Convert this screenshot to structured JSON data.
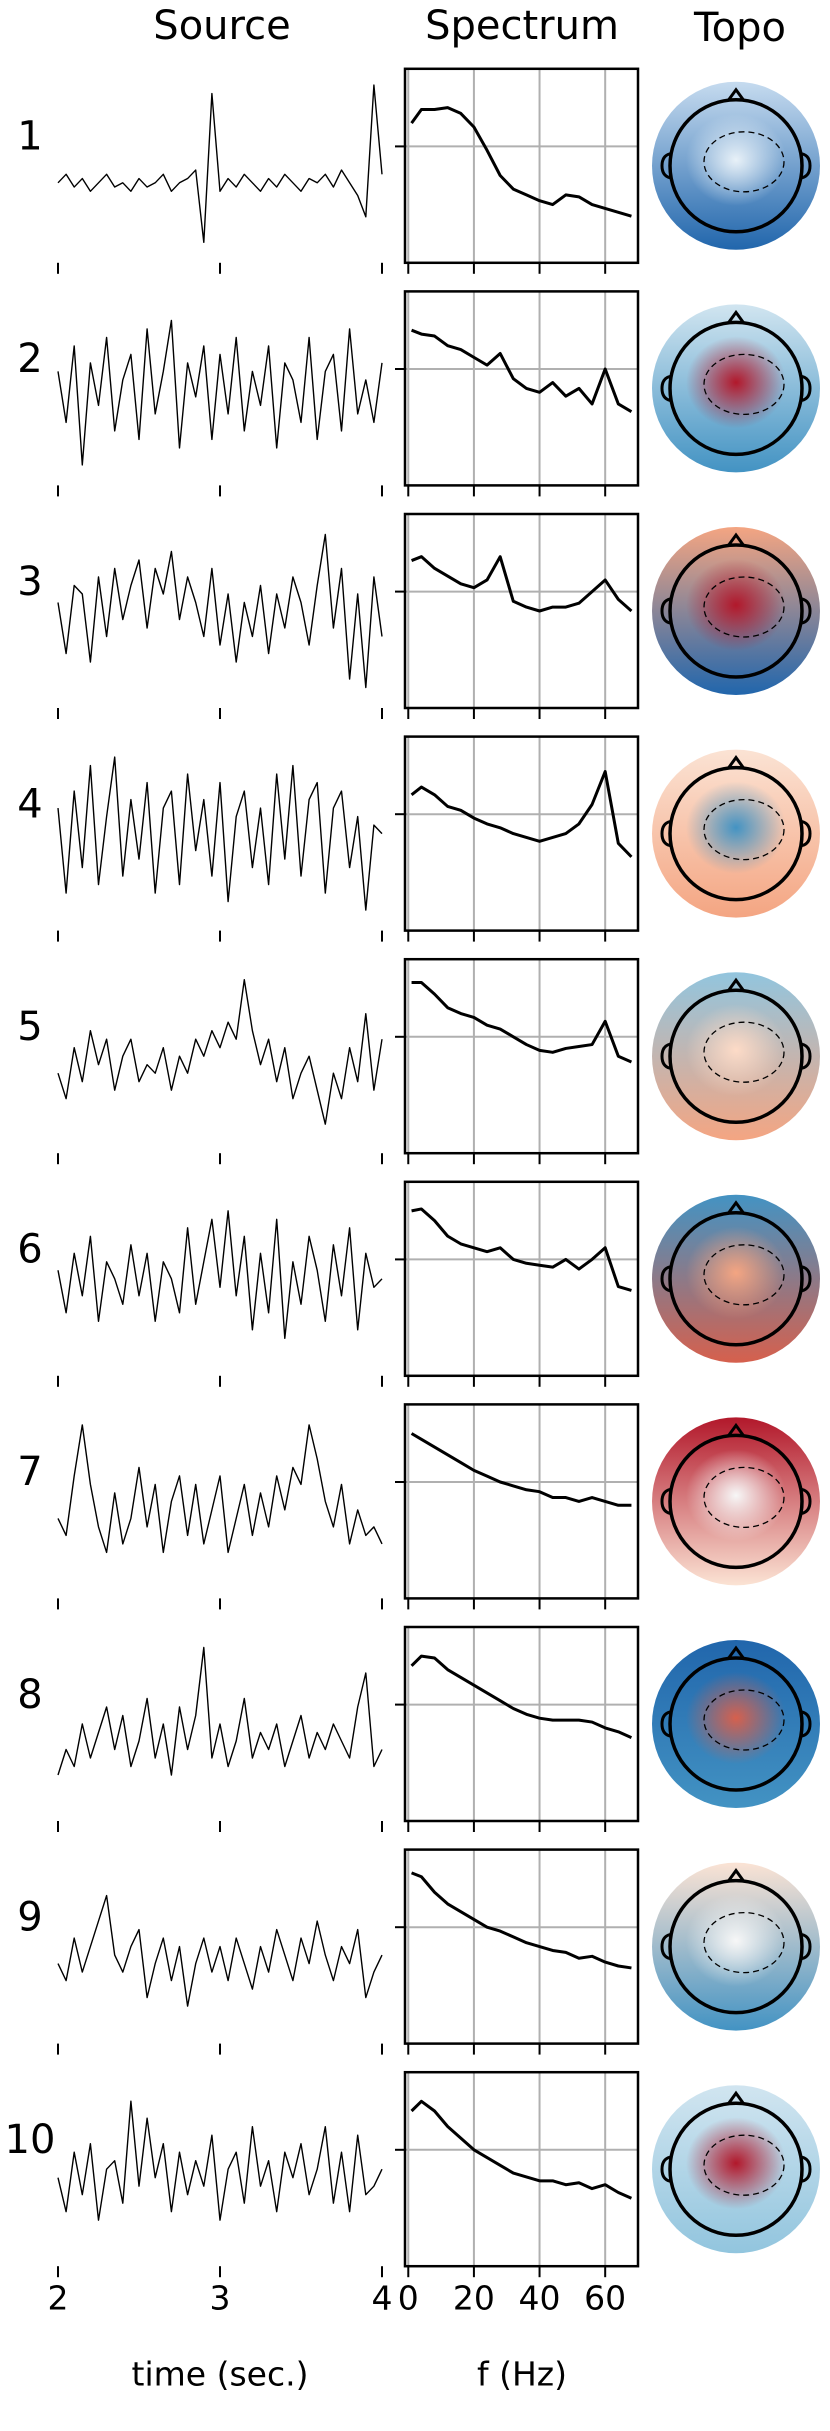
{
  "chart_data": [
    {
      "type": "line",
      "title": "Source",
      "xlabel": "time (sec.)",
      "color": "#000000",
      "x": [
        2,
        2.05,
        2.1,
        2.15,
        2.2,
        2.25,
        2.3,
        2.35,
        2.4,
        2.45,
        2.5,
        2.55,
        2.6,
        2.65,
        2.7,
        2.75,
        2.8,
        2.85,
        2.9,
        2.95,
        3,
        3.05,
        3.1,
        3.15,
        3.2,
        3.25,
        3.3,
        3.35,
        3.4,
        3.45,
        3.5,
        3.55,
        3.6,
        3.65,
        3.7,
        3.75,
        3.8,
        3.85,
        3.9,
        3.95,
        4
      ],
      "xlim": [
        2,
        4
      ],
      "xticks": [
        2,
        3,
        4
      ],
      "ylim": [
        -1,
        1
      ],
      "series": [
        {
          "name": "1",
          "values": [
            -0.2,
            -0.1,
            -0.25,
            -0.15,
            -0.3,
            -0.2,
            -0.1,
            -0.25,
            -0.2,
            -0.3,
            -0.15,
            -0.25,
            -0.2,
            -0.1,
            -0.3,
            -0.2,
            -0.15,
            -0.05,
            -0.9,
            0.85,
            -0.3,
            -0.15,
            -0.25,
            -0.1,
            -0.2,
            -0.3,
            -0.15,
            -0.25,
            -0.1,
            -0.2,
            -0.3,
            -0.15,
            -0.2,
            -0.1,
            -0.25,
            -0.05,
            -0.2,
            -0.35,
            -0.6,
            0.95,
            -0.1
          ]
        },
        {
          "name": "2",
          "values": [
            0.2,
            -0.4,
            0.5,
            -0.9,
            0.3,
            -0.2,
            0.6,
            -0.5,
            0.1,
            0.4,
            -0.6,
            0.7,
            -0.3,
            0.2,
            0.8,
            -0.7,
            0.3,
            -0.1,
            0.5,
            -0.6,
            0.4,
            -0.3,
            0.6,
            -0.5,
            0.2,
            -0.2,
            0.5,
            -0.7,
            0.3,
            0.1,
            -0.4,
            0.6,
            -0.6,
            0.2,
            0.4,
            -0.5,
            0.7,
            -0.3,
            0.1,
            -0.4,
            0.3
          ]
        },
        {
          "name": "3",
          "values": [
            0.1,
            -0.5,
            0.3,
            0.2,
            -0.6,
            0.4,
            -0.3,
            0.5,
            -0.1,
            0.3,
            0.6,
            -0.2,
            0.5,
            0.2,
            0.7,
            -0.1,
            0.4,
            0.1,
            -0.3,
            0.5,
            -0.4,
            0.2,
            -0.6,
            0.1,
            -0.3,
            0.3,
            -0.5,
            0.2,
            -0.2,
            0.4,
            0.1,
            -0.4,
            0.3,
            0.9,
            -0.2,
            0.5,
            -0.8,
            0.2,
            -0.9,
            0.4,
            -0.3
          ]
        },
        {
          "name": "4",
          "values": [
            0.3,
            -0.7,
            0.5,
            -0.4,
            0.8,
            -0.6,
            0.2,
            0.9,
            -0.5,
            0.4,
            -0.3,
            0.6,
            -0.7,
            0.3,
            0.5,
            -0.6,
            0.7,
            -0.2,
            0.4,
            -0.5,
            0.6,
            -0.8,
            0.2,
            0.5,
            -0.4,
            0.3,
            -0.6,
            0.7,
            -0.3,
            0.8,
            -0.5,
            0.4,
            0.6,
            -0.7,
            0.3,
            0.5,
            -0.4,
            0.2,
            -0.9,
            0.1,
            0
          ]
        },
        {
          "name": "5",
          "values": [
            -0.2,
            -0.5,
            0.1,
            -0.3,
            0.3,
            -0.1,
            0.2,
            -0.4,
            0,
            0.2,
            -0.3,
            -0.1,
            -0.2,
            0.1,
            -0.4,
            0,
            -0.2,
            0.2,
            0,
            0.3,
            0.1,
            0.4,
            0.2,
            0.9,
            0.3,
            -0.1,
            0.2,
            -0.3,
            0.1,
            -0.5,
            -0.2,
            0,
            -0.4,
            -0.8,
            -0.2,
            -0.5,
            0.1,
            -0.3,
            0.5,
            -0.4,
            0.2
          ]
        },
        {
          "name": "6",
          "values": [
            0.1,
            -0.4,
            0.3,
            -0.2,
            0.5,
            -0.5,
            0.2,
            0,
            -0.3,
            0.4,
            -0.2,
            0.3,
            -0.5,
            0.2,
            0,
            -0.4,
            0.6,
            -0.3,
            0.2,
            0.7,
            -0.1,
            0.8,
            -0.2,
            0.5,
            -0.6,
            0.3,
            -0.4,
            0.7,
            -0.7,
            0.2,
            -0.3,
            0.5,
            0.1,
            -0.5,
            0.4,
            -0.2,
            0.6,
            -0.6,
            0.3,
            -0.1,
            0
          ]
        },
        {
          "name": "7",
          "values": [
            -0.2,
            -0.4,
            0.3,
            0.9,
            0.2,
            -0.3,
            -0.6,
            0.1,
            -0.5,
            -0.2,
            0.4,
            -0.3,
            0.2,
            -0.6,
            0,
            0.3,
            -0.4,
            0.2,
            -0.5,
            -0.1,
            0.3,
            -0.6,
            -0.2,
            0.2,
            -0.4,
            0.1,
            -0.3,
            0.3,
            -0.1,
            0.4,
            0.2,
            0.9,
            0.5,
            0,
            -0.3,
            0.2,
            -0.5,
            -0.1,
            -0.4,
            -0.3,
            -0.5
          ]
        },
        {
          "name": "8",
          "values": [
            -0.6,
            -0.3,
            -0.5,
            0,
            -0.4,
            -0.1,
            0.2,
            -0.3,
            0.1,
            -0.5,
            -0.2,
            0.3,
            -0.4,
            0,
            -0.6,
            0.2,
            -0.3,
            0.1,
            0.9,
            -0.4,
            0,
            -0.5,
            -0.2,
            0.3,
            -0.4,
            -0.1,
            -0.3,
            0,
            -0.5,
            -0.2,
            0.1,
            -0.4,
            -0.1,
            -0.3,
            0,
            -0.2,
            -0.4,
            0.2,
            0.6,
            -0.5,
            -0.3
          ]
        },
        {
          "name": "9",
          "values": [
            -0.2,
            -0.4,
            0.1,
            -0.3,
            0,
            0.3,
            0.6,
            -0.1,
            -0.3,
            0,
            0.2,
            -0.6,
            -0.2,
            0.1,
            -0.4,
            0,
            -0.7,
            -0.2,
            0.1,
            -0.3,
            0,
            -0.4,
            0.1,
            -0.2,
            -0.5,
            0,
            -0.3,
            0.2,
            -0.1,
            -0.4,
            0.1,
            -0.2,
            0.3,
            -0.1,
            -0.4,
            0,
            -0.2,
            0.2,
            -0.6,
            -0.3,
            -0.1
          ]
        },
        {
          "name": "10",
          "values": [
            -0.1,
            -0.5,
            0.2,
            -0.3,
            0.3,
            -0.6,
            0,
            0.1,
            -0.4,
            0.8,
            -0.2,
            0.6,
            -0.1,
            0.3,
            -0.5,
            0.2,
            -0.3,
            0.1,
            -0.2,
            0.4,
            -0.6,
            0,
            0.2,
            -0.4,
            0.5,
            -0.2,
            0.1,
            -0.5,
            0.2,
            -0.1,
            0.3,
            -0.3,
            0,
            0.5,
            -0.4,
            0.2,
            -0.5,
            0.4,
            -0.3,
            -0.2,
            0
          ]
        }
      ]
    },
    {
      "type": "line",
      "title": "Spectrum",
      "xlabel": "f (Hz)",
      "color": "#000000",
      "grid": true,
      "x": [
        1,
        4,
        8,
        12,
        16,
        20,
        24,
        28,
        32,
        36,
        40,
        44,
        48,
        52,
        56,
        60,
        64,
        68
      ],
      "xlim": [
        -1,
        70
      ],
      "xticks": [
        0,
        20,
        40,
        60
      ],
      "ylim": [
        0,
        1
      ],
      "yticks": [
        0.6
      ],
      "series": [
        {
          "values": [
            0.72,
            0.79,
            0.79,
            0.8,
            0.77,
            0.7,
            0.58,
            0.45,
            0.38,
            0.35,
            0.32,
            0.3,
            0.35,
            0.34,
            0.3,
            0.28,
            0.26,
            0.24
          ]
        },
        {
          "values": [
            0.8,
            0.78,
            0.77,
            0.72,
            0.7,
            0.66,
            0.62,
            0.68,
            0.55,
            0.5,
            0.48,
            0.53,
            0.46,
            0.5,
            0.42,
            0.6,
            0.42,
            0.38
          ]
        },
        {
          "values": [
            0.76,
            0.78,
            0.72,
            0.68,
            0.64,
            0.62,
            0.66,
            0.78,
            0.55,
            0.52,
            0.5,
            0.52,
            0.52,
            0.54,
            0.6,
            0.66,
            0.56,
            0.5
          ]
        },
        {
          "values": [
            0.7,
            0.74,
            0.7,
            0.64,
            0.62,
            0.58,
            0.55,
            0.53,
            0.5,
            0.48,
            0.46,
            0.48,
            0.5,
            0.55,
            0.65,
            0.82,
            0.45,
            0.38
          ]
        },
        {
          "values": [
            0.88,
            0.88,
            0.82,
            0.75,
            0.72,
            0.7,
            0.66,
            0.64,
            0.6,
            0.56,
            0.53,
            0.52,
            0.54,
            0.55,
            0.56,
            0.68,
            0.5,
            0.47
          ]
        },
        {
          "values": [
            0.85,
            0.86,
            0.8,
            0.72,
            0.68,
            0.66,
            0.64,
            0.66,
            0.6,
            0.58,
            0.57,
            0.56,
            0.6,
            0.55,
            0.6,
            0.66,
            0.46,
            0.44
          ]
        },
        {
          "values": [
            0.85,
            0.82,
            0.78,
            0.74,
            0.7,
            0.66,
            0.63,
            0.6,
            0.58,
            0.56,
            0.55,
            0.52,
            0.52,
            0.5,
            0.52,
            0.5,
            0.48,
            0.48
          ]
        },
        {
          "values": [
            0.8,
            0.85,
            0.84,
            0.78,
            0.74,
            0.7,
            0.66,
            0.62,
            0.58,
            0.55,
            0.53,
            0.52,
            0.52,
            0.52,
            0.51,
            0.48,
            0.46,
            0.43
          ]
        },
        {
          "values": [
            0.88,
            0.86,
            0.78,
            0.72,
            0.68,
            0.64,
            0.6,
            0.58,
            0.55,
            0.52,
            0.5,
            0.48,
            0.47,
            0.44,
            0.45,
            0.42,
            0.4,
            0.39
          ]
        },
        {
          "values": [
            0.8,
            0.85,
            0.8,
            0.72,
            0.66,
            0.6,
            0.56,
            0.52,
            0.48,
            0.46,
            0.44,
            0.44,
            0.42,
            0.43,
            0.4,
            0.42,
            0.38,
            0.35
          ]
        }
      ]
    },
    {
      "type": "topomap",
      "title": "Topo",
      "series": [
        {
          "colors": [
            "#c6dbef",
            "#2166ac",
            "#e8f1f8"
          ]
        },
        {
          "colors": [
            "#d1e5f0",
            "#4393c3",
            "#b2182b"
          ]
        },
        {
          "colors": [
            "#f4a582",
            "#2166ac",
            "#b2182b"
          ]
        },
        {
          "colors": [
            "#fbe3d4",
            "#f4a582",
            "#4393c3"
          ]
        },
        {
          "colors": [
            "#92c5de",
            "#f4a582",
            "#fddbc7"
          ]
        },
        {
          "colors": [
            "#4393c3",
            "#d6604d",
            "#f4a582"
          ]
        },
        {
          "colors": [
            "#b2182b",
            "#fbe3d4",
            "#f7f7f7"
          ]
        },
        {
          "colors": [
            "#2166ac",
            "#4393c3",
            "#d6604d"
          ]
        },
        {
          "colors": [
            "#fbe3d4",
            "#4393c3",
            "#f7f7f7"
          ]
        },
        {
          "colors": [
            "#d1e5f0",
            "#92c5de",
            "#b2182b"
          ]
        }
      ]
    }
  ]
}
